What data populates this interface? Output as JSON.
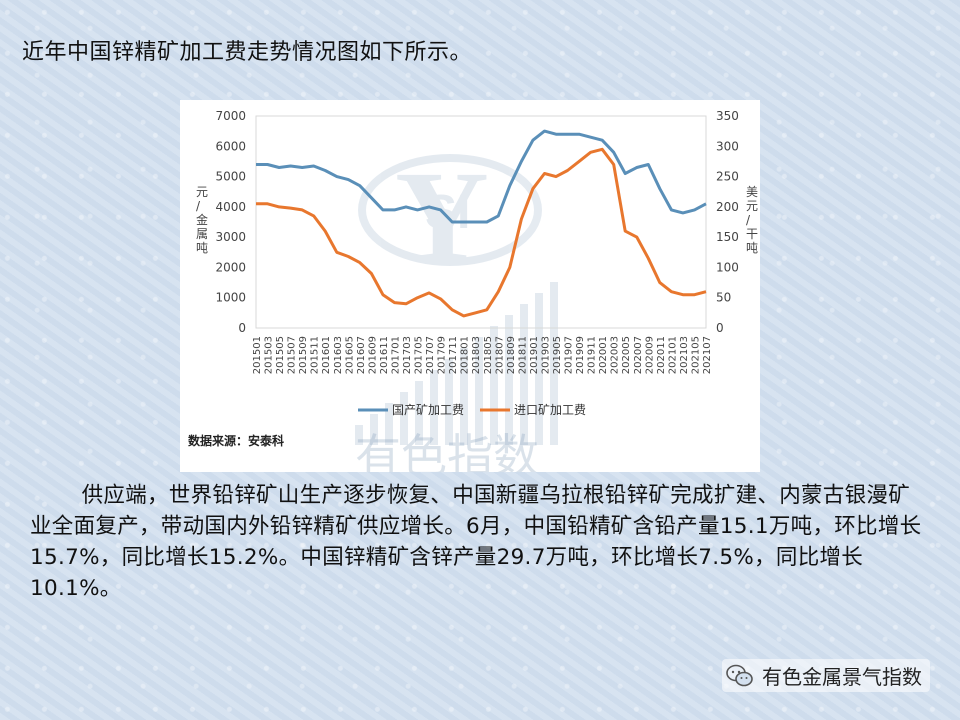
{
  "heading": "近年中国锌精矿加工费走势情况图如下所示。",
  "paragraph": "供应端，世界铅锌矿山生产逐步恢复、中国新疆乌拉根铅锌矿完成扩建、内蒙古银漫矿业全面复产，带动国内外铅锌精矿供应增长。6月，中国铅精矿含铅产量15.1万吨，环比增长15.7%，同比增长15.2%。中国锌精矿含锌产量29.7万吨，环比增长7.5%，同比增长10.1%。",
  "brand": {
    "name": "有色金属景气指数",
    "icon": "wechat-icon"
  },
  "chart_data": {
    "type": "line",
    "x_ticks": [
      "201501",
      "201503",
      "201505",
      "201507",
      "201509",
      "201511",
      "201601",
      "201603",
      "201605",
      "201607",
      "201609",
      "201611",
      "201701",
      "201703",
      "201705",
      "201707",
      "201709",
      "201711",
      "201801",
      "201803",
      "201805",
      "201807",
      "201809",
      "201811",
      "201901",
      "201903",
      "201905",
      "201907",
      "201909",
      "201911",
      "202001",
      "202003",
      "202005",
      "202007",
      "202009",
      "202011",
      "202101",
      "202103",
      "202105",
      "202107"
    ],
    "y_left": {
      "label": "元/金属吨",
      "ticks": [
        0,
        1000,
        2000,
        3000,
        4000,
        5000,
        6000,
        7000
      ],
      "range": [
        0,
        7000
      ]
    },
    "y_right": {
      "label": "美元/干吨",
      "ticks": [
        0,
        50,
        100,
        150,
        200,
        250,
        300,
        350
      ],
      "range": [
        0,
        350
      ]
    },
    "series": [
      {
        "name": "国产矿加工费",
        "axis": "left",
        "color": "#5a8fb8",
        "values": [
          5400,
          5400,
          5300,
          5350,
          5300,
          5350,
          5200,
          5000,
          4900,
          4700,
          4300,
          3900,
          3900,
          4000,
          3900,
          4000,
          3900,
          3500,
          3500,
          3500,
          3500,
          3700,
          4700,
          5500,
          6200,
          6500,
          6400,
          6400,
          6400,
          6300,
          6200,
          5800,
          5100,
          5300,
          5400,
          4600,
          3900,
          3800,
          3900,
          4100
        ]
      },
      {
        "name": "进口矿加工费",
        "axis": "right",
        "color": "#e8772e",
        "values": [
          205,
          205,
          200,
          198,
          195,
          185,
          160,
          125,
          118,
          108,
          90,
          55,
          42,
          40,
          50,
          58,
          48,
          30,
          20,
          25,
          30,
          60,
          100,
          180,
          230,
          255,
          250,
          260,
          275,
          290,
          295,
          270,
          160,
          150,
          115,
          75,
          60,
          55,
          55,
          60
        ]
      }
    ],
    "legend_position": "bottom",
    "source": "数据来源：安泰科",
    "watermark": "有色指数"
  }
}
